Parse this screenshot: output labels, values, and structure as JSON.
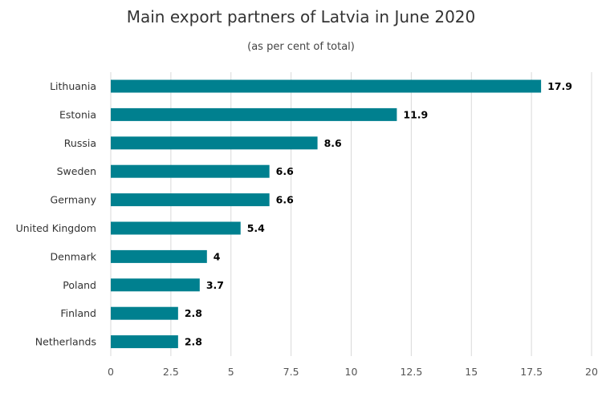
{
  "chart_data": {
    "type": "bar",
    "orientation": "horizontal",
    "title": "Main export partners of Latvia in June 2020",
    "subtitle": "(as per cent of total)",
    "categories": [
      "Lithuania",
      "Estonia",
      "Russia",
      "Sweden",
      "Germany",
      "United Kingdom",
      "Denmark",
      "Poland",
      "Finland",
      "Netherlands"
    ],
    "values": [
      17.9,
      11.9,
      8.6,
      6.6,
      6.6,
      5.4,
      4,
      3.7,
      2.8,
      2.8
    ],
    "data_labels": [
      "17.9",
      "11.9",
      "8.6",
      "6.6",
      "6.6",
      "5.4",
      "4",
      "3.7",
      "2.8",
      "2.8"
    ],
    "xlim": [
      0,
      20
    ],
    "x_ticks": [
      0,
      2.5,
      5,
      7.5,
      10,
      12.5,
      15,
      17.5,
      20
    ],
    "x_tick_labels": [
      "0",
      "2.5",
      "5",
      "7.5",
      "10",
      "12.5",
      "15",
      "17.5",
      "20"
    ],
    "grid": "vertical",
    "legend": "none",
    "bar_color": "#00808f",
    "grid_color": "#d9d9d9"
  }
}
